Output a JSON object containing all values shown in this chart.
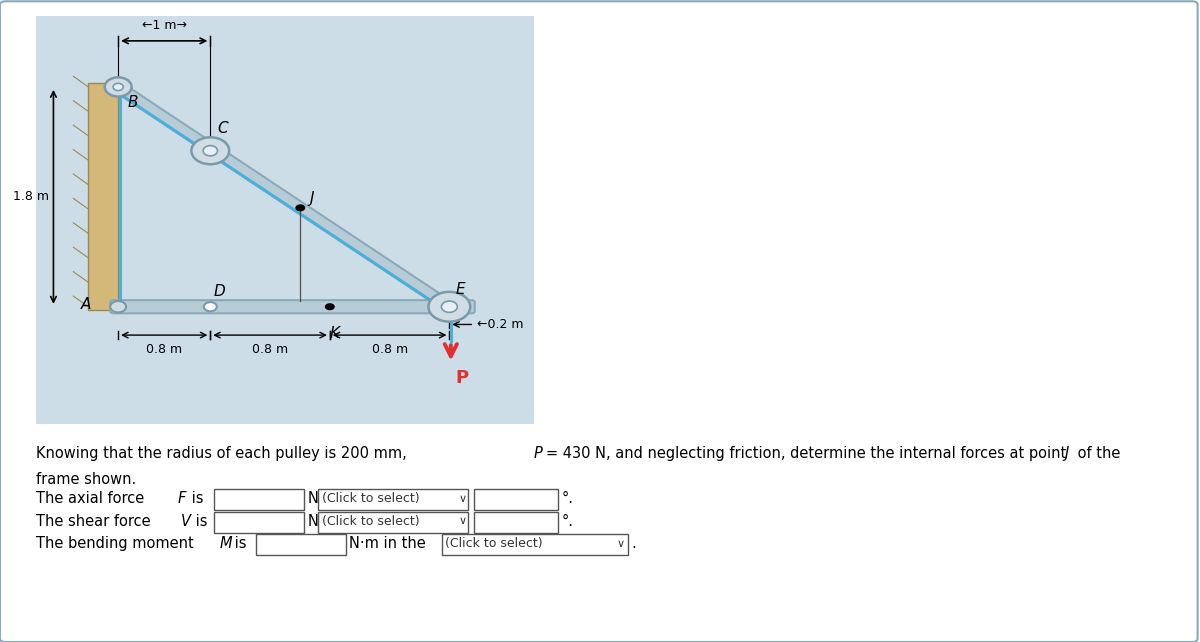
{
  "bg_color": "#ccdde8",
  "wall_color": "#d4b87a",
  "frame_color": "#b8ccd8",
  "frame_edge_color": "#8aaabb",
  "cable_color": "#4ab0d8",
  "arrow_color": "#e03030",
  "title_text": "Knowing that the radius of each pulley is 200 mm, ",
  "title_italic": "P",
  "title_text2": "= 430 N, and neglecting friction, determine the internal forces at point ",
  "title_italic2": "J",
  "title_text3": " of the\nframe shown.",
  "label_1_8": "1.8 m",
  "label_1m": "←1 m→",
  "label_0_8_1": "0.8 m",
  "label_0_8_2": "0.8 m",
  "label_0_8_3": "0.8 m",
  "label_0_2": "←0.2 m",
  "label_A": "A",
  "label_B": "B",
  "label_C": "C",
  "label_D": "D",
  "label_E": "E",
  "label_J": "J",
  "label_K": "K",
  "label_P": "P",
  "axial_text": "The axial force ",
  "axial_F": "F",
  "axial_text2": " is",
  "shear_text": "The shear force ",
  "shear_V": "V",
  "shear_text2": " is",
  "moment_text": "The bending moment ",
  "moment_M": "M",
  "moment_text2": " is",
  "click1": "(Click to select)",
  "click2": "(Click to select)",
  "click3": "(Click to select)",
  "outer_box_color": "#9ab0c0"
}
